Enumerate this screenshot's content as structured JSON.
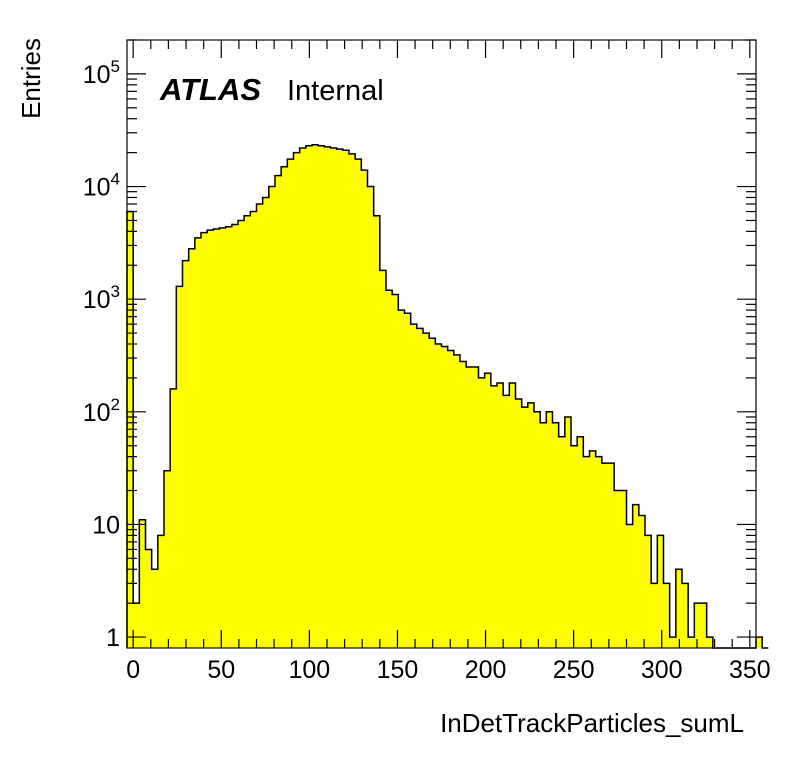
{
  "chart_data": {
    "type": "histogram",
    "title": "",
    "xlabel": "InDetTrackParticles_sumL",
    "ylabel": "Entries",
    "experiment_label": "ATLAS",
    "status_label": "Internal",
    "fill_color": "#ffff00",
    "line_color": "#000000",
    "log_y": true,
    "grid": false,
    "xlim": [
      -3.5,
      353.5
    ],
    "ylim": [
      0.8,
      200000
    ],
    "x_ticks": [
      0,
      50,
      100,
      150,
      200,
      250,
      300,
      350
    ],
    "x_tick_labels": [
      "0",
      "50",
      "100",
      "150",
      "200",
      "250",
      "300",
      "350"
    ],
    "y_ticks": [
      1,
      10,
      100,
      1000,
      10000,
      100000
    ],
    "y_tick_labels": [
      {
        "base": "1",
        "exp": ""
      },
      {
        "base": "10",
        "exp": ""
      },
      {
        "base": "10",
        "exp": "2"
      },
      {
        "base": "10",
        "exp": "3"
      },
      {
        "base": "10",
        "exp": "4"
      },
      {
        "base": "10",
        "exp": "5"
      }
    ],
    "bin_width": 3.5,
    "bin_start": -3.5,
    "values": [
      6000,
      2,
      11,
      6,
      4,
      8,
      30,
      160,
      1300,
      2200,
      2800,
      3500,
      3900,
      4100,
      4200,
      4300,
      4400,
      4600,
      5000,
      5500,
      6000,
      7000,
      8000,
      10000,
      12500,
      15000,
      17500,
      20000,
      22000,
      23000,
      23500,
      23000,
      22500,
      22000,
      21500,
      21000,
      19500,
      17500,
      14000,
      10000,
      5500,
      1800,
      1200,
      1100,
      800,
      750,
      600,
      550,
      500,
      450,
      400,
      380,
      350,
      320,
      280,
      250,
      250,
      200,
      220,
      170,
      180,
      140,
      180,
      130,
      110,
      120,
      100,
      80,
      100,
      80,
      60,
      90,
      50,
      60,
      40,
      45,
      40,
      35,
      35,
      20,
      20,
      10,
      15,
      12,
      8,
      3,
      8,
      3,
      1,
      4,
      3,
      1,
      2,
      2,
      1,
      0,
      0,
      0,
      0,
      0,
      0,
      0,
      1,
      0
    ]
  }
}
